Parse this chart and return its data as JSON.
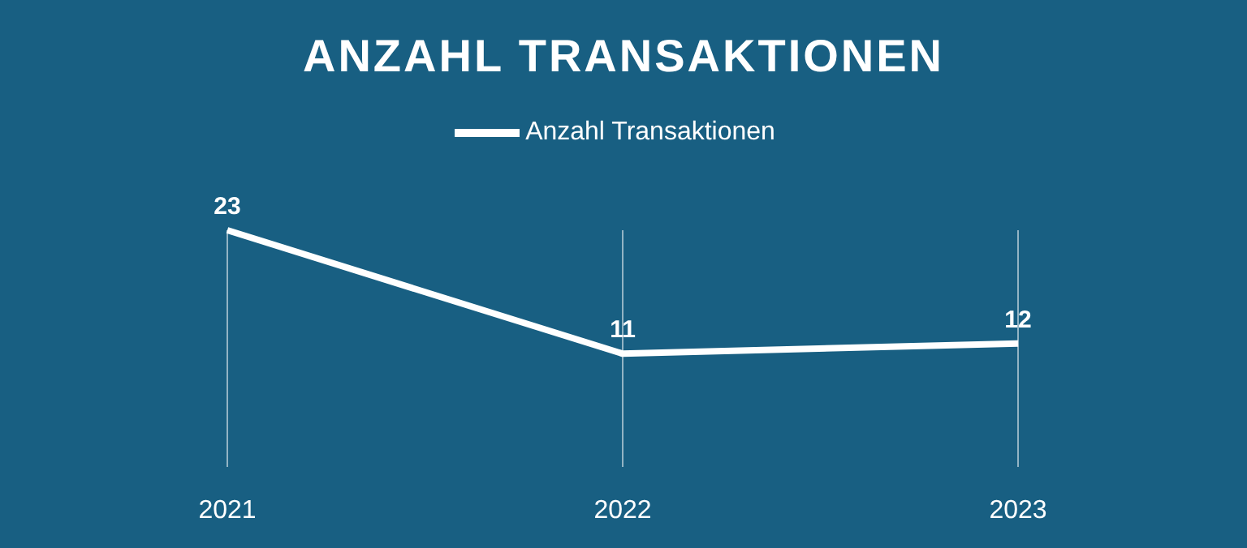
{
  "chart_data": {
    "type": "line",
    "title": "ANZAHL TRANSAKTIONEN",
    "categories": [
      "2021",
      "2022",
      "2023"
    ],
    "series": [
      {
        "name": "Anzahl Transaktionen",
        "color": "#ffffff",
        "values": [
          23,
          11,
          12
        ]
      }
    ],
    "data_labels": true,
    "legend": "top",
    "grid": "x",
    "marker": "none",
    "line_style": "solid"
  }
}
